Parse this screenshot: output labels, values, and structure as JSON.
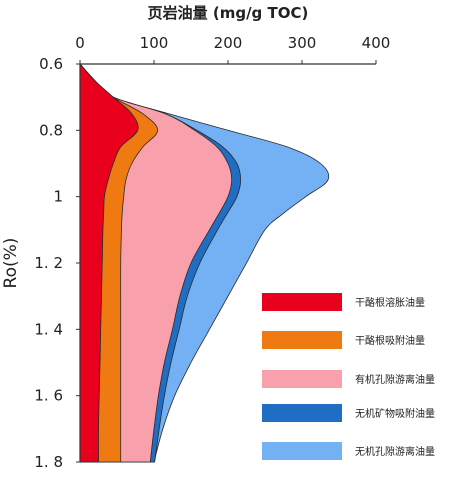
{
  "chart_data": {
    "type": "area",
    "title": "",
    "xlabel": "页岩油量 (mg/g TOC)",
    "ylabel": "Ro(%)",
    "xlim": [
      0,
      400
    ],
    "ylim": [
      0.6,
      1.8
    ],
    "x_axis_position": "top",
    "y_axis_inverted": true,
    "grid": false,
    "legend_position": "bottom-right",
    "x_ticks": [
      "0",
      "100",
      "200",
      "300",
      "400"
    ],
    "y_ticks": [
      "0.6",
      "0.8",
      "1",
      "1. 2",
      "1. 4",
      "1. 6",
      "1. 8"
    ],
    "y": [
      0.6,
      0.65,
      0.7,
      0.75,
      0.8,
      0.85,
      0.9,
      0.95,
      1.0,
      1.05,
      1.1,
      1.2,
      1.3,
      1.4,
      1.5,
      1.6,
      1.7,
      1.8
    ],
    "series": [
      {
        "name": "干酪根溶胀油量",
        "color": "#e8001c",
        "cumulative": [
          0,
          20,
          45,
          70,
          78,
          55,
          45,
          38,
          33,
          32,
          31,
          30,
          29,
          28,
          27,
          26,
          25,
          25
        ]
      },
      {
        "name": "干酪根吸附油量",
        "color": "#f07a12",
        "cumulative": [
          0,
          20,
          45,
          85,
          105,
          85,
          70,
          62,
          59,
          57,
          56,
          55,
          55,
          55,
          55,
          55,
          55,
          55
        ]
      },
      {
        "name": "有机孔隙游离油量",
        "color": "#f9a0ad",
        "cumulative": [
          0,
          20,
          45,
          115,
          155,
          185,
          200,
          205,
          200,
          188,
          175,
          150,
          135,
          125,
          114,
          106,
          100,
          95
        ]
      },
      {
        "name": "无机矿物吸附油量",
        "color": "#1f6ec4",
        "cumulative": [
          0,
          20,
          45,
          115,
          158,
          193,
          212,
          217,
          212,
          199,
          186,
          162,
          145,
          134,
          123,
          114,
          107,
          101
        ]
      },
      {
        "name": "无机孔隙游离油量",
        "color": "#73b0f4",
        "cumulative": [
          0,
          20,
          45,
          120,
          200,
          280,
          325,
          335,
          305,
          275,
          250,
          225,
          200,
          175,
          150,
          128,
          112,
          100
        ]
      }
    ]
  }
}
